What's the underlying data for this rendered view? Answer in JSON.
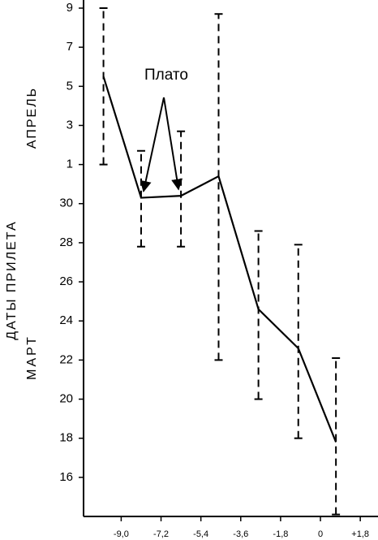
{
  "chart_data": {
    "type": "line",
    "y_labels": [
      "АПРЕЛЬ",
      "ДАТЫ ПРИЛЕТА",
      "МАРТ"
    ],
    "annotation": "Плато",
    "x": [
      -9.8,
      -8.1,
      -6.3,
      -4.6,
      -2.8,
      -1.0,
      0.7
    ],
    "series": [
      {
        "color": "#000000",
        "values": [
          36.5,
          30.3,
          30.4,
          31.4,
          24.6,
          22.6,
          17.8
        ],
        "lower": [
          32,
          27.8,
          27.8,
          22,
          20,
          18,
          14.1
        ],
        "upper": [
          40,
          32.7,
          33.7,
          39.7,
          28.6,
          27.9,
          22.1
        ]
      }
    ],
    "annotation_points": [
      1,
      2
    ],
    "xlim": [
      -10.7,
      2.6
    ],
    "xticks": [
      {
        "value": -9.0,
        "label": "-9,0"
      },
      {
        "value": -7.2,
        "label": "-7,2"
      },
      {
        "value": -5.4,
        "label": "-5,4"
      },
      {
        "value": -3.6,
        "label": "-3,6"
      },
      {
        "value": -1.8,
        "label": "-1,8"
      },
      0,
      {
        "value": 1.8,
        "label": "+1,8"
      }
    ],
    "ylim": [
      14,
      40
    ],
    "yticks": [
      {
        "value": 40,
        "label": "9"
      },
      {
        "value": 38,
        "label": "7"
      },
      {
        "value": 36,
        "label": "5"
      },
      {
        "value": 34,
        "label": "3"
      },
      {
        "value": 32,
        "label": "1"
      },
      30,
      28,
      26,
      24,
      22,
      20,
      18,
      16
    ]
  }
}
